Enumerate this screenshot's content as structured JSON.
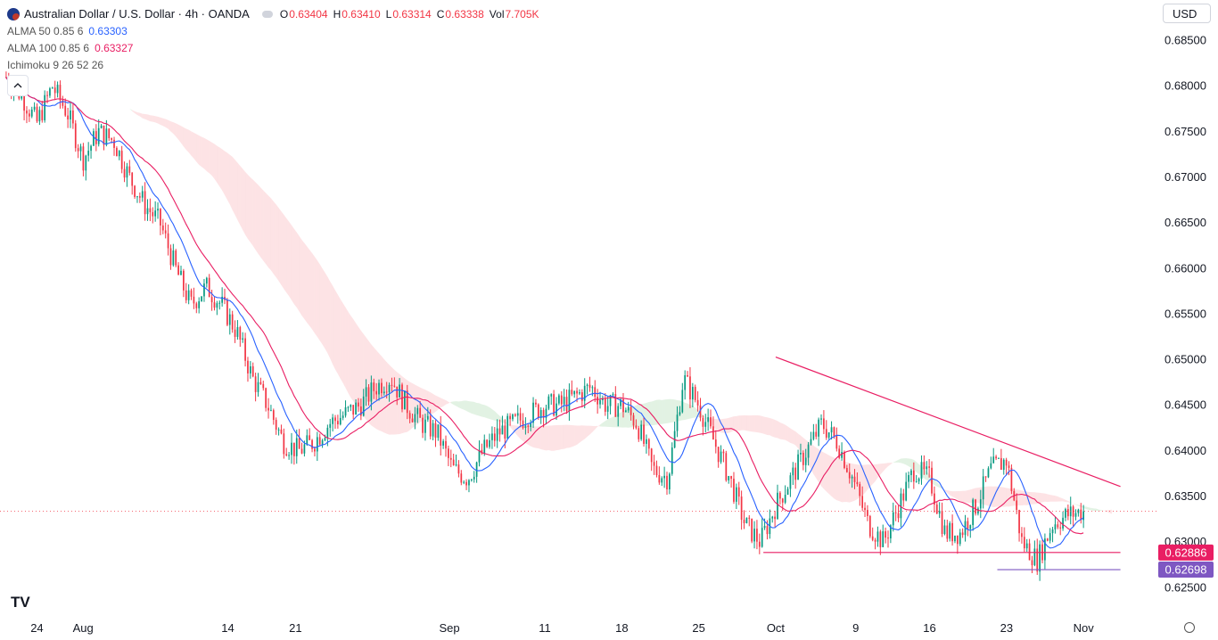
{
  "header": {
    "title": "Australian Dollar / U.S. Dollar · 4h · OANDA",
    "ohlc": [
      {
        "k": "O",
        "v": "0.63404"
      },
      {
        "k": "H",
        "v": "0.63410"
      },
      {
        "k": "L",
        "v": "0.63314"
      },
      {
        "k": "C",
        "v": "0.63338"
      },
      {
        "k": "Vol",
        "v": "7.705K"
      }
    ],
    "indicators": [
      {
        "name": "ALMA 50 0.85 6",
        "value": "0.63303",
        "color": "#2962ff"
      },
      {
        "name": "ALMA 100 0.85 6",
        "value": "0.63327",
        "color": "#e91e63"
      },
      {
        "name": "Ichimoku 9 26 52 26",
        "value": ""
      }
    ]
  },
  "currency": "USD",
  "logo": "TV",
  "chart_data": {
    "type": "candlestick",
    "ylim": [
      0.622,
      0.6875
    ],
    "y_ticks": [
      "0.68500",
      "0.68000",
      "0.67500",
      "0.67000",
      "0.66500",
      "0.66000",
      "0.65500",
      "0.65000",
      "0.64500",
      "0.64000",
      "0.63500",
      "0.63000",
      "0.62500"
    ],
    "y_tick_values": [
      0.685,
      0.68,
      0.675,
      0.67,
      0.665,
      0.66,
      0.655,
      0.65,
      0.645,
      0.64,
      0.635,
      0.63,
      0.625
    ],
    "x_ticks": [
      "24",
      "Aug",
      "14",
      "21",
      "Sep",
      "11",
      "18",
      "25",
      "Oct",
      "9",
      "16",
      "23",
      "Nov"
    ],
    "x_tick_positions": [
      0.0,
      1.5,
      6.2,
      8.4,
      13.4,
      16.5,
      19.0,
      21.5,
      24.0,
      26.6,
      29.0,
      31.5,
      34.0
    ],
    "x_range": [
      -1.2,
      36.4
    ],
    "last_price": 0.63338,
    "price_labels": [
      {
        "label": "0.62886",
        "value": 0.62886,
        "color": "#e91e63"
      },
      {
        "label": "0.62698",
        "value": 0.62698,
        "color": "#7e57c2"
      }
    ],
    "trendlines": [
      {
        "name": "descending-resistance",
        "x": [
          24.0,
          35.2
        ],
        "y": [
          0.6503,
          0.6361
        ],
        "color": "#e91e63"
      },
      {
        "name": "support",
        "x": [
          23.6,
          35.2
        ],
        "y": [
          0.62886,
          0.62886
        ],
        "color": "#e91e63"
      },
      {
        "name": "lower-support",
        "x": [
          31.2,
          35.2
        ],
        "y": [
          0.62698,
          0.62698
        ],
        "color": "#7e57c2"
      }
    ],
    "series": [
      {
        "name": "price",
        "x": [
          -1,
          -0.5,
          0,
          0.5,
          1,
          1.5,
          2,
          2.5,
          3,
          3.5,
          4,
          4.5,
          5,
          5.5,
          6,
          6.5,
          7,
          7.5,
          8,
          8.5,
          9,
          9.5,
          10,
          10.5,
          11,
          11.5,
          12,
          12.5,
          13,
          13.5,
          14,
          14.5,
          15,
          15.5,
          16,
          16.5,
          17,
          17.5,
          18,
          18.5,
          19,
          19.5,
          20,
          20.5,
          21,
          21.5,
          22,
          22.5,
          23,
          23.5,
          24,
          24.5,
          25,
          25.5,
          26,
          26.5,
          27,
          27.5,
          28,
          28.5,
          29,
          29.5,
          30,
          30.5,
          31,
          31.5,
          32,
          32.5,
          33,
          33.5,
          34
        ],
        "y": [
          0.681,
          0.679,
          0.676,
          0.68,
          0.677,
          0.672,
          0.675,
          0.674,
          0.67,
          0.667,
          0.665,
          0.66,
          0.656,
          0.658,
          0.656,
          0.653,
          0.648,
          0.645,
          0.641,
          0.64,
          0.641,
          0.643,
          0.644,
          0.645,
          0.647,
          0.648,
          0.645,
          0.643,
          0.642,
          0.638,
          0.637,
          0.64,
          0.642,
          0.643,
          0.644,
          0.645,
          0.645,
          0.646,
          0.647,
          0.645,
          0.645,
          0.643,
          0.638,
          0.637,
          0.648,
          0.645,
          0.641,
          0.637,
          0.632,
          0.63,
          0.634,
          0.637,
          0.64,
          0.643,
          0.641,
          0.637,
          0.632,
          0.63,
          0.634,
          0.638,
          0.637,
          0.631,
          0.631,
          0.634,
          0.638,
          0.639,
          0.63,
          0.628,
          0.632,
          0.633,
          0.6334
        ]
      },
      {
        "name": "ALMA 50",
        "color": "#2962ff"
      },
      {
        "name": "ALMA 100",
        "color": "#e91e63"
      }
    ]
  }
}
